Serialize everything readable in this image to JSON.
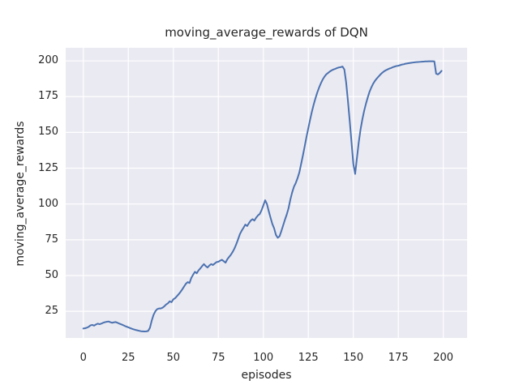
{
  "figure": {
    "title": "moving_average_rewards of DQN",
    "xlabel": "episodes",
    "ylabel": "moving_average_rewards"
  },
  "chart_data": {
    "type": "line",
    "title": "moving_average_rewards of DQN",
    "xlabel": "episodes",
    "ylabel": "moving_average_rewards",
    "legend": "none",
    "grid": true,
    "x_ticks": [
      0,
      25,
      50,
      75,
      100,
      125,
      150,
      175,
      200
    ],
    "y_ticks": [
      25,
      50,
      75,
      100,
      125,
      150,
      175,
      200
    ],
    "xlim": [
      -9.8,
      213.2
    ],
    "ylim": [
      6.4,
      209.1
    ],
    "colors": {
      "line": "#4C72B0",
      "plot_background": "#EAEAF2",
      "grid": "#FFFFFF",
      "figure_background": "#FFFFFF",
      "text": "#262626"
    },
    "series": [
      {
        "name": "moving_average_rewards",
        "points": [
          [
            0,
            13
          ],
          [
            1,
            13.2
          ],
          [
            2,
            13.6
          ],
          [
            3,
            14.2
          ],
          [
            4,
            15.2
          ],
          [
            5,
            15.5
          ],
          [
            6,
            15
          ],
          [
            7,
            15.8
          ],
          [
            8,
            16.4
          ],
          [
            9,
            16
          ],
          [
            10,
            16.4
          ],
          [
            11,
            17
          ],
          [
            12,
            17.4
          ],
          [
            13,
            17.7
          ],
          [
            14,
            17.9
          ],
          [
            15,
            17.4
          ],
          [
            16,
            17
          ],
          [
            17,
            17.3
          ],
          [
            18,
            17.5
          ],
          [
            19,
            17
          ],
          [
            20,
            16.4
          ],
          [
            21,
            15.9
          ],
          [
            22,
            15.4
          ],
          [
            23,
            14.8
          ],
          [
            24,
            14.3
          ],
          [
            25,
            13.8
          ],
          [
            26,
            13.3
          ],
          [
            27,
            12.8
          ],
          [
            28,
            12.4
          ],
          [
            29,
            12
          ],
          [
            30,
            11.7
          ],
          [
            31,
            11.4
          ],
          [
            32,
            11.1
          ],
          [
            33,
            11
          ],
          [
            34,
            10.9
          ],
          [
            35,
            11
          ],
          [
            36,
            11.3
          ],
          [
            37,
            13.5
          ],
          [
            38,
            18.5
          ],
          [
            39,
            22.5
          ],
          [
            40,
            25
          ],
          [
            41,
            26.5
          ],
          [
            42,
            27
          ],
          [
            43,
            27
          ],
          [
            44,
            27.5
          ],
          [
            45,
            28.5
          ],
          [
            46,
            29.8
          ],
          [
            47,
            30.6
          ],
          [
            48,
            32
          ],
          [
            49,
            31.4
          ],
          [
            50,
            33.4
          ],
          [
            51,
            34.2
          ],
          [
            52,
            35.6
          ],
          [
            53,
            37
          ],
          [
            54,
            38.6
          ],
          [
            55,
            40.4
          ],
          [
            56,
            42.4
          ],
          [
            57,
            44.3
          ],
          [
            58,
            45.4
          ],
          [
            59,
            44.8
          ],
          [
            60,
            48.4
          ],
          [
            61,
            50.6
          ],
          [
            62,
            52.6
          ],
          [
            63,
            51.6
          ],
          [
            64,
            53.6
          ],
          [
            65,
            55
          ],
          [
            66,
            56.6
          ],
          [
            67,
            58
          ],
          [
            68,
            56.6
          ],
          [
            69,
            55.6
          ],
          [
            70,
            57
          ],
          [
            71,
            58
          ],
          [
            72,
            57.4
          ],
          [
            73,
            58.4
          ],
          [
            74,
            59.4
          ],
          [
            75,
            59.6
          ],
          [
            76,
            60.4
          ],
          [
            77,
            61
          ],
          [
            78,
            60
          ],
          [
            79,
            59
          ],
          [
            80,
            61.4
          ],
          [
            81,
            63
          ],
          [
            82,
            64.6
          ],
          [
            83,
            66.6
          ],
          [
            84,
            69
          ],
          [
            85,
            72
          ],
          [
            86,
            75.4
          ],
          [
            87,
            79
          ],
          [
            88,
            81.4
          ],
          [
            89,
            83.4
          ],
          [
            90,
            85.6
          ],
          [
            91,
            84.6
          ],
          [
            92,
            86.6
          ],
          [
            93,
            88.4
          ],
          [
            94,
            89.4
          ],
          [
            95,
            88.4
          ],
          [
            96,
            90.4
          ],
          [
            97,
            92
          ],
          [
            98,
            93
          ],
          [
            99,
            95.6
          ],
          [
            100,
            99
          ],
          [
            101,
            102.6
          ],
          [
            102,
            100
          ],
          [
            103,
            95
          ],
          [
            104,
            90.4
          ],
          [
            105,
            86
          ],
          [
            106,
            83
          ],
          [
            107,
            78.4
          ],
          [
            108,
            76.4
          ],
          [
            109,
            77.4
          ],
          [
            110,
            81
          ],
          [
            111,
            85
          ],
          [
            112,
            89
          ],
          [
            113,
            92.6
          ],
          [
            114,
            97
          ],
          [
            115,
            103
          ],
          [
            116,
            108
          ],
          [
            117,
            112
          ],
          [
            118,
            114.6
          ],
          [
            119,
            118
          ],
          [
            120,
            122
          ],
          [
            121,
            128
          ],
          [
            122,
            134
          ],
          [
            123,
            140.4
          ],
          [
            124,
            147
          ],
          [
            125,
            153
          ],
          [
            126,
            159
          ],
          [
            127,
            164.6
          ],
          [
            128,
            169.6
          ],
          [
            129,
            174
          ],
          [
            130,
            178
          ],
          [
            131,
            181.4
          ],
          [
            132,
            184.4
          ],
          [
            133,
            187
          ],
          [
            134,
            189
          ],
          [
            135,
            190.6
          ],
          [
            136,
            191.6
          ],
          [
            137,
            192.6
          ],
          [
            138,
            193.4
          ],
          [
            139,
            194
          ],
          [
            140,
            194.4
          ],
          [
            141,
            195
          ],
          [
            142,
            195.4
          ],
          [
            143,
            195.6
          ],
          [
            144,
            196
          ],
          [
            145,
            194
          ],
          [
            146,
            185
          ],
          [
            147,
            172
          ],
          [
            148,
            158
          ],
          [
            149,
            143
          ],
          [
            150,
            128
          ],
          [
            151,
            121
          ],
          [
            152,
            132
          ],
          [
            153,
            143
          ],
          [
            154,
            152
          ],
          [
            155,
            159
          ],
          [
            156,
            165
          ],
          [
            157,
            170
          ],
          [
            158,
            174.4
          ],
          [
            159,
            178.4
          ],
          [
            160,
            181.4
          ],
          [
            161,
            184
          ],
          [
            162,
            186
          ],
          [
            163,
            187.6
          ],
          [
            164,
            189
          ],
          [
            165,
            190.4
          ],
          [
            166,
            191.6
          ],
          [
            167,
            192.6
          ],
          [
            168,
            193.4
          ],
          [
            169,
            194
          ],
          [
            170,
            194.6
          ],
          [
            171,
            195
          ],
          [
            172,
            195.6
          ],
          [
            173,
            196
          ],
          [
            174,
            196.4
          ],
          [
            175,
            196.6
          ],
          [
            176,
            197
          ],
          [
            177,
            197.4
          ],
          [
            178,
            197.6
          ],
          [
            179,
            198
          ],
          [
            180,
            198.2
          ],
          [
            181,
            198.4
          ],
          [
            182,
            198.6
          ],
          [
            183,
            198.8
          ],
          [
            184,
            199
          ],
          [
            185,
            199.1
          ],
          [
            186,
            199.2
          ],
          [
            187,
            199.3
          ],
          [
            188,
            199.4
          ],
          [
            189,
            199.5
          ],
          [
            190,
            199.6
          ],
          [
            191,
            199.6
          ],
          [
            192,
            199.7
          ],
          [
            193,
            199.7
          ],
          [
            194,
            199.7
          ],
          [
            195,
            199.6
          ],
          [
            196,
            191
          ],
          [
            197,
            190.5
          ],
          [
            198,
            191.5
          ],
          [
            199,
            193
          ]
        ]
      }
    ]
  }
}
